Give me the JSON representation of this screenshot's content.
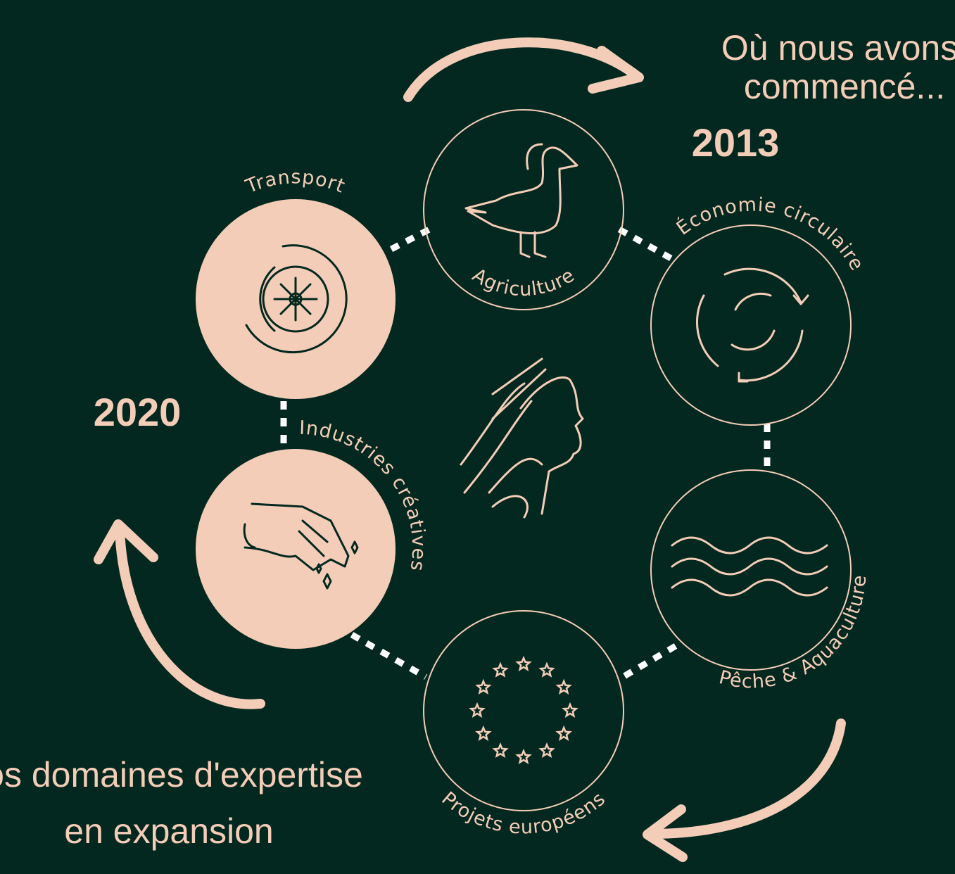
{
  "annotations": {
    "start": {
      "lines": [
        "Où nous avons",
        "commencé..."
      ]
    },
    "year_start": "2013",
    "year_latest": "2020",
    "expansion": {
      "lines": [
        "nos domaines d'expertise",
        "en expansion"
      ]
    }
  },
  "nodes": [
    {
      "label": "Agriculture"
    },
    {
      "label": "Économie circulaire"
    },
    {
      "label": "Pêche & Aquaculture"
    },
    {
      "label": "Projets européens"
    },
    {
      "label": "Industries créatives"
    },
    {
      "label": "Transport"
    }
  ]
}
